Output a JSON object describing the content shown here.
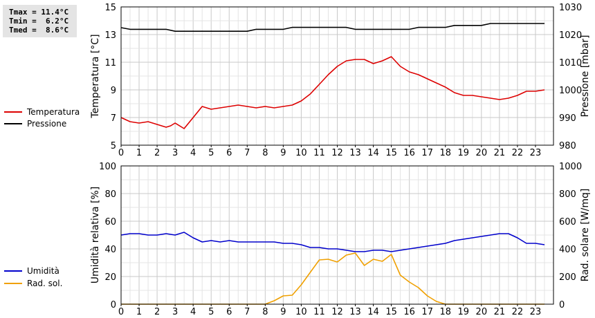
{
  "stats": {
    "tmax": "Tmax = 11.4°C",
    "tmin": "Tmin =  6.2°C",
    "tmed": "Tmed =  8.6°C"
  },
  "legend_top": [
    {
      "label": "Temperatura",
      "color": "#dd0000"
    },
    {
      "label": "Pressione",
      "color": "#000000"
    }
  ],
  "legend_bottom": [
    {
      "label": "Umidità",
      "color": "#0000cc"
    },
    {
      "label": "Rad. sol.",
      "color": "#f0a000"
    }
  ],
  "chart_data": [
    {
      "type": "line",
      "xticks": [
        0,
        1,
        2,
        3,
        4,
        5,
        6,
        7,
        8,
        9,
        10,
        11,
        12,
        13,
        14,
        15,
        16,
        17,
        18,
        19,
        20,
        21,
        22,
        23
      ],
      "xlim": [
        0,
        24
      ],
      "ylabel": "Temperatura [°C]",
      "ylim": [
        5,
        15
      ],
      "yticks": [
        5,
        7,
        9,
        11,
        13,
        15
      ],
      "ylabel_right": "Pressione [mbar]",
      "ylim_right": [
        980,
        1030
      ],
      "yticks_right": [
        980,
        990,
        1000,
        1010,
        1020,
        1030
      ],
      "grid": true,
      "series": [
        {
          "name": "Temperatura",
          "axis": "left",
          "color": "#dd0000",
          "x": [
            0,
            0.33,
            0.5,
            1,
            1.5,
            2,
            2.5,
            2.75,
            3,
            3.5,
            4,
            4.5,
            5,
            5.5,
            6,
            6.5,
            7,
            7.5,
            8,
            8.5,
            9,
            9.5,
            10,
            10.5,
            11,
            11.5,
            12,
            12.5,
            13,
            13.5,
            14,
            14.5,
            15,
            15.5,
            16,
            16.5,
            17,
            17.5,
            18,
            18.5,
            19,
            19.5,
            20,
            20.5,
            21,
            21.5,
            22,
            22.5,
            23,
            23.5
          ],
          "values": [
            7.0,
            6.8,
            6.7,
            6.6,
            6.7,
            6.5,
            6.3,
            6.4,
            6.6,
            6.2,
            7.0,
            7.8,
            7.6,
            7.7,
            7.8,
            7.9,
            7.8,
            7.7,
            7.8,
            7.7,
            7.8,
            7.9,
            8.2,
            8.7,
            9.4,
            10.1,
            10.7,
            11.1,
            11.2,
            11.2,
            10.9,
            11.1,
            11.4,
            10.7,
            10.3,
            10.1,
            9.8,
            9.5,
            9.2,
            8.8,
            8.6,
            8.6,
            8.5,
            8.4,
            8.3,
            8.4,
            8.6,
            8.9,
            8.9,
            9.0
          ]
        },
        {
          "name": "Pressione",
          "axis": "right",
          "color": "#000000",
          "x": [
            0,
            0.5,
            1,
            1.5,
            2,
            2.5,
            3,
            3.5,
            4,
            4.5,
            5,
            5.5,
            6,
            6.5,
            7,
            7.5,
            8,
            8.5,
            9,
            9.5,
            10,
            10.5,
            11,
            11.5,
            12,
            12.5,
            13,
            13.5,
            14,
            14.5,
            15,
            15.5,
            16,
            16.5,
            17,
            17.5,
            18,
            18.5,
            19,
            19.5,
            20,
            20.5,
            21,
            21.5,
            22,
            22.5,
            23,
            23.5
          ],
          "values": [
            1022.5,
            1021.9,
            1021.9,
            1021.9,
            1021.9,
            1021.9,
            1021.2,
            1021.2,
            1021.2,
            1021.2,
            1021.2,
            1021.2,
            1021.2,
            1021.2,
            1021.2,
            1021.9,
            1021.9,
            1021.9,
            1021.9,
            1022.6,
            1022.6,
            1022.6,
            1022.6,
            1022.6,
            1022.6,
            1022.6,
            1021.9,
            1021.9,
            1021.9,
            1021.9,
            1021.9,
            1021.9,
            1021.9,
            1022.6,
            1022.6,
            1022.6,
            1022.6,
            1023.3,
            1023.3,
            1023.3,
            1023.3,
            1024.0,
            1024.0,
            1024.0,
            1024.0,
            1024.0,
            1024.0,
            1024.0
          ]
        }
      ]
    },
    {
      "type": "line",
      "xticks": [
        0,
        1,
        2,
        3,
        4,
        5,
        6,
        7,
        8,
        9,
        10,
        11,
        12,
        13,
        14,
        15,
        16,
        17,
        18,
        19,
        20,
        21,
        22,
        23
      ],
      "xlim": [
        0,
        24
      ],
      "ylabel": "Umidità relativa [%]",
      "ylim": [
        0,
        100
      ],
      "yticks": [
        0,
        20,
        40,
        60,
        80,
        100
      ],
      "ylabel_right": "Rad. solare [W/mq]",
      "ylim_right": [
        0,
        1000
      ],
      "yticks_right": [
        0,
        200,
        400,
        600,
        800,
        1000
      ],
      "grid": true,
      "series": [
        {
          "name": "Umidità",
          "axis": "left",
          "color": "#0000cc",
          "x": [
            0,
            0.5,
            1,
            1.5,
            2,
            2.5,
            3,
            3.5,
            4,
            4.5,
            5,
            5.5,
            6,
            6.5,
            7,
            7.5,
            8,
            8.5,
            9,
            9.5,
            10,
            10.5,
            11,
            11.5,
            12,
            12.5,
            13,
            13.5,
            14,
            14.5,
            15,
            15.5,
            16,
            16.5,
            17,
            17.5,
            18,
            18.5,
            19,
            19.5,
            20,
            20.5,
            21,
            21.5,
            22,
            22.5,
            23,
            23.5
          ],
          "values": [
            50,
            51,
            51,
            50,
            50,
            51,
            50,
            52,
            48,
            45,
            46,
            45,
            46,
            45,
            45,
            45,
            45,
            45,
            44,
            44,
            43,
            41,
            41,
            40,
            40,
            39,
            38,
            38,
            39,
            39,
            38,
            39,
            40,
            41,
            42,
            43,
            44,
            46,
            47,
            48,
            49,
            50,
            51,
            51,
            48,
            44,
            44,
            43
          ]
        },
        {
          "name": "Rad. sol.",
          "axis": "right",
          "color": "#f0a000",
          "x": [
            0,
            1,
            2,
            3,
            4,
            5,
            6,
            7,
            8,
            8.2,
            8.5,
            9,
            9.5,
            10,
            10.5,
            11,
            11.5,
            12,
            12.5,
            13,
            13.5,
            14,
            14.5,
            15,
            15.5,
            16,
            16.5,
            17,
            17.5,
            18,
            18.5,
            19,
            20,
            21,
            22,
            23,
            23.5
          ],
          "values": [
            0,
            0,
            0,
            0,
            0,
            0,
            0,
            0,
            0,
            10,
            25,
            60,
            65,
            140,
            230,
            320,
            325,
            305,
            355,
            370,
            280,
            325,
            310,
            360,
            210,
            160,
            120,
            60,
            20,
            0,
            0,
            0,
            0,
            0,
            0,
            0,
            0
          ]
        }
      ]
    }
  ]
}
